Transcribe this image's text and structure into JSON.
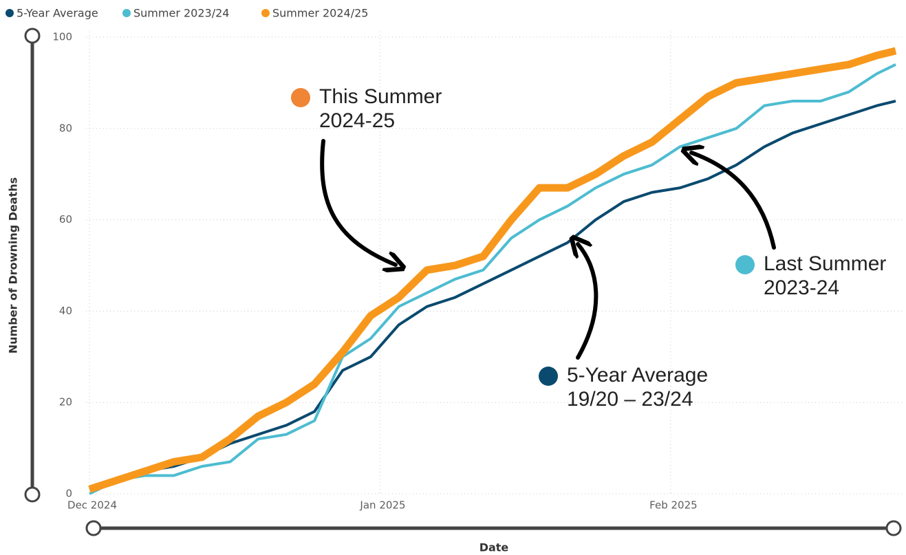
{
  "chart_data": {
    "type": "line",
    "xlabel": "Date",
    "ylabel": "Number of Drowning Deaths",
    "x": [
      0,
      3,
      6,
      9,
      12,
      15,
      18,
      21,
      24,
      27,
      30,
      33,
      36,
      39,
      42,
      45,
      48,
      51,
      54,
      57,
      60,
      63,
      66,
      69,
      72,
      75,
      78,
      81,
      84,
      86
    ],
    "xlim": [
      0,
      86
    ],
    "xticks": [
      {
        "value": 0,
        "label": "Dec 2024"
      },
      {
        "value": 31,
        "label": "Jan 2025"
      },
      {
        "value": 62,
        "label": "Feb 2025"
      }
    ],
    "ylim": [
      0,
      100
    ],
    "yticks": [
      0,
      20,
      40,
      60,
      80,
      100
    ],
    "grid": true,
    "series": [
      {
        "name": "5-Year Average",
        "color": "#0b4a6f",
        "values": [
          1,
          3,
          5,
          6,
          8,
          11,
          13,
          15,
          18,
          27,
          30,
          37,
          41,
          43,
          46,
          49,
          52,
          55,
          60,
          64,
          66,
          67,
          69,
          72,
          76,
          79,
          81,
          83,
          85,
          86
        ]
      },
      {
        "name": "Summer 2023/24",
        "color": "#4dbcd1",
        "values": [
          0,
          3,
          4,
          4,
          6,
          7,
          12,
          13,
          16,
          30,
          34,
          41,
          44,
          47,
          49,
          56,
          60,
          63,
          67,
          70,
          72,
          76,
          78,
          80,
          85,
          86,
          86,
          88,
          92,
          94
        ]
      },
      {
        "name": "Summer 2024/25",
        "color": "#f7981d",
        "values": [
          1,
          3,
          5,
          7,
          8,
          12,
          17,
          20,
          24,
          31,
          39,
          43,
          49,
          50,
          52,
          60,
          67,
          67,
          70,
          74,
          77,
          82,
          87,
          90,
          91,
          92,
          93,
          94,
          96,
          97
        ]
      }
    ],
    "annotations": [
      {
        "lines": [
          "This Summer",
          "2024-25"
        ],
        "color": "#ef8535"
      },
      {
        "lines": [
          "Last Summer",
          "2023-24"
        ],
        "color": "#4dbcd1"
      },
      {
        "lines": [
          "5-Year Average",
          "19/20 – 23/24"
        ],
        "color": "#0b4a6f"
      }
    ]
  }
}
